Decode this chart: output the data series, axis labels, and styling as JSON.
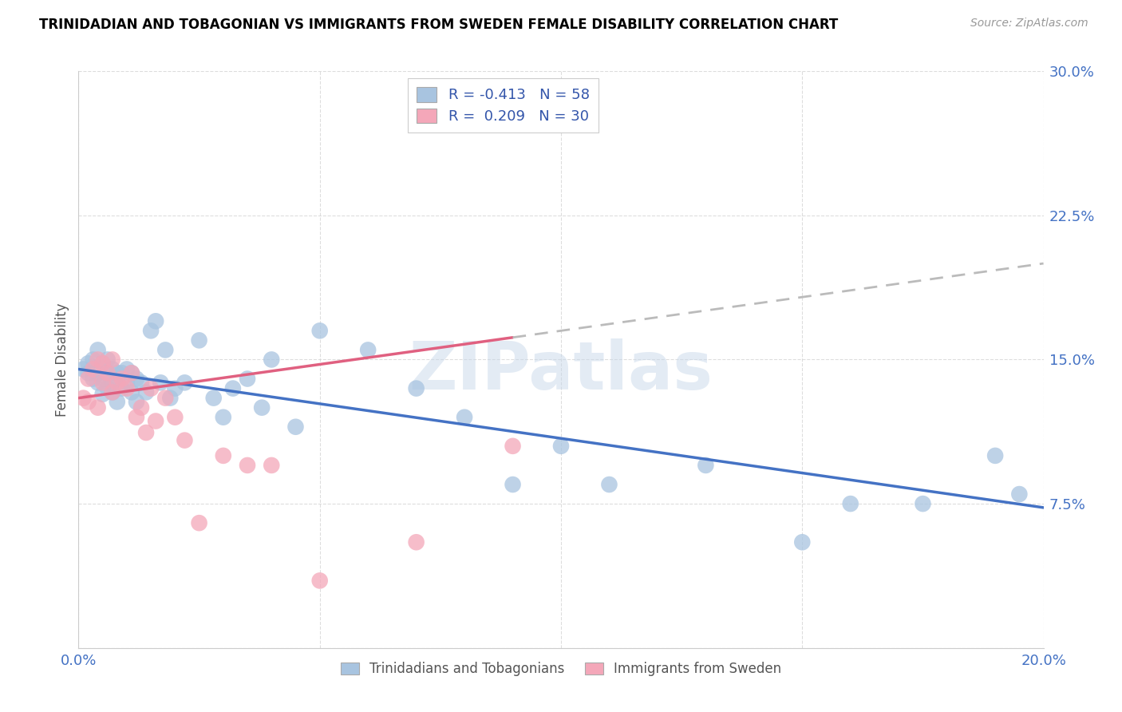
{
  "title": "TRINIDADIAN AND TOBAGONIAN VS IMMIGRANTS FROM SWEDEN FEMALE DISABILITY CORRELATION CHART",
  "source": "Source: ZipAtlas.com",
  "ylabel": "Female Disability",
  "xlim": [
    0.0,
    0.2
  ],
  "ylim": [
    0.0,
    0.3
  ],
  "xticks": [
    0.0,
    0.05,
    0.1,
    0.15,
    0.2
  ],
  "yticks": [
    0.0,
    0.075,
    0.15,
    0.225,
    0.3
  ],
  "blue_R": -0.413,
  "blue_N": 58,
  "pink_R": 0.209,
  "pink_N": 30,
  "blue_label": "Trinidadians and Tobagonians",
  "pink_label": "Immigrants from Sweden",
  "blue_color": "#a8c4e0",
  "pink_color": "#f4a7b9",
  "blue_line_color": "#4472c4",
  "pink_line_color": "#e06080",
  "watermark": "ZIPatlas",
  "blue_line_x0": 0.0,
  "blue_line_y0": 0.145,
  "blue_line_x1": 0.2,
  "blue_line_y1": 0.073,
  "pink_line_x0": 0.0,
  "pink_line_y0": 0.13,
  "pink_line_x1": 0.2,
  "pink_line_y1": 0.2,
  "pink_line_dash_start": 0.09,
  "blue_scatter_x": [
    0.001,
    0.002,
    0.002,
    0.003,
    0.003,
    0.004,
    0.004,
    0.004,
    0.005,
    0.005,
    0.005,
    0.006,
    0.006,
    0.006,
    0.007,
    0.007,
    0.007,
    0.008,
    0.008,
    0.008,
    0.009,
    0.009,
    0.01,
    0.01,
    0.011,
    0.011,
    0.012,
    0.012,
    0.013,
    0.014,
    0.015,
    0.016,
    0.017,
    0.018,
    0.019,
    0.02,
    0.022,
    0.025,
    0.028,
    0.03,
    0.032,
    0.035,
    0.038,
    0.04,
    0.045,
    0.05,
    0.06,
    0.07,
    0.08,
    0.09,
    0.1,
    0.11,
    0.13,
    0.15,
    0.16,
    0.175,
    0.19,
    0.195
  ],
  "blue_scatter_y": [
    0.145,
    0.143,
    0.148,
    0.14,
    0.15,
    0.138,
    0.143,
    0.155,
    0.132,
    0.14,
    0.148,
    0.135,
    0.143,
    0.15,
    0.138,
    0.145,
    0.133,
    0.128,
    0.14,
    0.143,
    0.135,
    0.143,
    0.138,
    0.145,
    0.133,
    0.143,
    0.128,
    0.14,
    0.138,
    0.133,
    0.165,
    0.17,
    0.138,
    0.155,
    0.13,
    0.135,
    0.138,
    0.16,
    0.13,
    0.12,
    0.135,
    0.14,
    0.125,
    0.15,
    0.115,
    0.165,
    0.155,
    0.135,
    0.12,
    0.085,
    0.105,
    0.085,
    0.095,
    0.055,
    0.075,
    0.075,
    0.1,
    0.08
  ],
  "pink_scatter_x": [
    0.001,
    0.002,
    0.002,
    0.003,
    0.004,
    0.004,
    0.005,
    0.005,
    0.006,
    0.007,
    0.007,
    0.008,
    0.009,
    0.01,
    0.011,
    0.012,
    0.013,
    0.014,
    0.015,
    0.016,
    0.018,
    0.02,
    0.022,
    0.025,
    0.03,
    0.035,
    0.04,
    0.05,
    0.07,
    0.09
  ],
  "pink_scatter_y": [
    0.13,
    0.128,
    0.14,
    0.145,
    0.125,
    0.15,
    0.148,
    0.138,
    0.143,
    0.133,
    0.15,
    0.138,
    0.14,
    0.135,
    0.143,
    0.12,
    0.125,
    0.112,
    0.135,
    0.118,
    0.13,
    0.12,
    0.108,
    0.065,
    0.1,
    0.095,
    0.095,
    0.035,
    0.055,
    0.105
  ]
}
